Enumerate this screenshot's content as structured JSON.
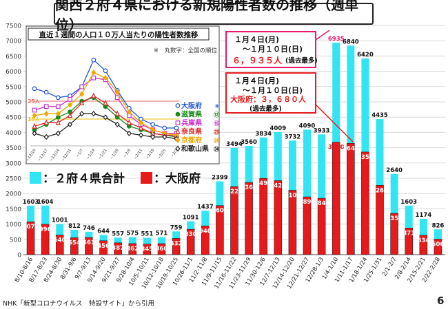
{
  "page": {
    "title": "関西２府４県における新規陽性者数の推移（週単位）",
    "source": "NHK「新型コロナウイルス　特設サイト」から引用",
    "page_number": "6"
  },
  "legend": {
    "total": "：２府４県合計",
    "osaka": "：大阪府",
    "total_color": "#33e5f2",
    "osaka_color": "#e8191a"
  },
  "callout_total": {
    "line1": "１月４日(月)",
    "line2": "～１月１０日(日)",
    "value": "６，９３５人",
    "suffix": "(過去最多)",
    "border_color": "#e8176e"
  },
  "callout_osaka": {
    "line1": "１月４日(月)",
    "line2": "～１月１０日(日)",
    "value_label": "大阪府：３，６８０人",
    "suffix": "(過去最多)",
    "border_color": "#e8191a"
  },
  "chart_data": {
    "type": "bar",
    "ylim": [
      0,
      7500
    ],
    "yticks": [
      0,
      500,
      1000,
      1500,
      2000,
      2500,
      3000,
      3500,
      4000,
      4500,
      5000,
      5500,
      6000,
      6500,
      7000,
      7500
    ],
    "categories": [
      "8/10-8/16",
      "8/17-8/23",
      "8/24-8/30",
      "8/31-9/6",
      "9/7-9/13",
      "9/14-9/20",
      "9/21-9/27",
      "9/28-10/4",
      "10/5-10/11",
      "10/12-10/18",
      "10/19-10/25",
      "10/26-11/1",
      "11/2-11/8",
      "11/9-11/15",
      "11/16-11/22",
      "11/23-11/29",
      "11/30-12/6",
      "12/7-12/13",
      "12/14-12/20",
      "12/21-12/27",
      "12/28-1/3",
      "1/4-1/10",
      "1/11-1/17",
      "1/18-1/24",
      "1/25-1/31",
      "2/1-2/7",
      "2/8-2/14",
      "2/15-2/21",
      "2/22-2/28"
    ],
    "series": [
      {
        "name": "２府４県合計",
        "values": [
          1603,
          1604,
          1001,
          812,
          746,
          644,
          557,
          575,
          551,
          571,
          759,
          1091,
          1437,
          2399,
          3494,
          3560,
          3834,
          4009,
          3732,
          4090,
          3933,
          6935,
          6840,
          6420,
          4435,
          2640,
          1603,
          1174,
          826
        ]
      },
      {
        "name": "大阪府",
        "values": [
          1076,
          996,
          640,
          554,
          561,
          456,
          387,
          362,
          345,
          360,
          532,
          830,
          940,
          1605,
          2228,
          2363,
          2496,
          2422,
          2107,
          1890,
          1845,
          3680,
          3643,
          3359,
          2268,
          1354,
          871,
          634,
          506
        ]
      }
    ]
  },
  "inset": {
    "title": "直近１週間の人口１０万人当たりの陽性者数推移",
    "note": "※　丸数字：全国の順位",
    "ref_lines": [
      {
        "label": "25人",
        "value": 25,
        "color": "#ff6666"
      },
      {
        "label": "15人",
        "value": 15,
        "color": "#e6c200"
      }
    ],
    "chart_data": {
      "type": "line",
      "x": [
        "~12/10",
        "~12/17",
        "~12/24",
        "~12/31",
        "~1/7",
        "~1/14",
        "~1/21",
        "~1/28",
        "~2/4",
        "~2/11",
        "~2/18",
        "~2/25",
        "~3/3"
      ],
      "ylim": [
        0,
        50
      ],
      "series": [
        {
          "name": "大阪府",
          "rank": "⑧",
          "color": "#2255cc",
          "marker": "circle-open",
          "values": [
            32,
            30,
            27,
            28,
            33,
            48,
            42,
            31,
            21,
            15,
            12,
            10,
            10
          ]
        },
        {
          "name": "滋賀県",
          "rank": "⑫",
          "color": "#1a8a1a",
          "marker": "circle",
          "values": [
            9,
            12,
            16,
            19,
            25,
            27,
            22,
            16,
            11,
            9,
            7,
            6,
            5
          ]
        },
        {
          "name": "兵庫県",
          "rank": "⑯",
          "color": "#cc33cc",
          "marker": "square-open",
          "values": [
            20,
            22,
            22,
            26,
            33,
            38,
            37,
            27,
            17,
            12,
            9,
            7,
            7
          ]
        },
        {
          "name": "奈良県",
          "rank": "㉓",
          "color": "#dd2222",
          "marker": "triangle-open",
          "values": [
            11,
            13,
            13,
            17,
            24,
            28,
            24,
            18,
            13,
            10,
            7,
            6,
            6
          ]
        },
        {
          "name": "京都府",
          "rank": "㉔",
          "color": "#f2a600",
          "marker": "diamond",
          "values": [
            17,
            18,
            18,
            23,
            29,
            41,
            38,
            30,
            19,
            13,
            9,
            7,
            6
          ]
        },
        {
          "name": "和歌山県",
          "rank": "㉞",
          "color": "#222222",
          "marker": "diamond-open",
          "values": [
            7,
            5,
            7,
            12,
            18,
            18,
            16,
            12,
            7,
            6,
            5,
            5,
            4
          ]
        }
      ]
    }
  }
}
